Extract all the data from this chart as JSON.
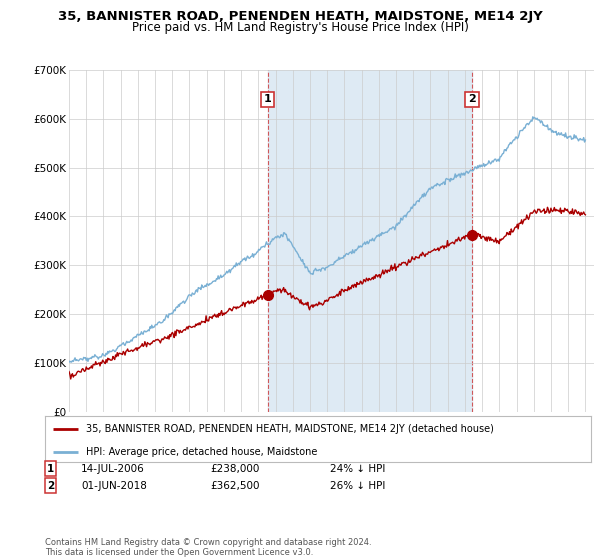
{
  "title": "35, BANNISTER ROAD, PENENDEN HEATH, MAIDSTONE, ME14 2JY",
  "subtitle": "Price paid vs. HM Land Registry's House Price Index (HPI)",
  "ylim": [
    0,
    700000
  ],
  "yticks": [
    0,
    100000,
    200000,
    300000,
    400000,
    500000,
    600000,
    700000
  ],
  "ytick_labels": [
    "£0",
    "£100K",
    "£200K",
    "£300K",
    "£400K",
    "£500K",
    "£600K",
    "£700K"
  ],
  "xlim_start": 1995.0,
  "xlim_end": 2025.5,
  "sale1_x": 2006.54,
  "sale1_y": 238000,
  "sale2_x": 2018.42,
  "sale2_y": 362500,
  "sale1_label": "1",
  "sale2_label": "2",
  "sale1_date": "14-JUL-2006",
  "sale1_price": "£238,000",
  "sale1_hpi": "24% ↓ HPI",
  "sale2_date": "01-JUN-2018",
  "sale2_price": "£362,500",
  "sale2_hpi": "26% ↓ HPI",
  "legend1_label": "35, BANNISTER ROAD, PENENDEN HEATH, MAIDSTONE, ME14 2JY (detached house)",
  "legend2_label": "HPI: Average price, detached house, Maidstone",
  "footer": "Contains HM Land Registry data © Crown copyright and database right 2024.\nThis data is licensed under the Open Government Licence v3.0.",
  "line_red_color": "#aa0000",
  "line_blue_color": "#7ab0d4",
  "shade_color": "#deeaf4",
  "background_color": "#ffffff",
  "grid_color": "#cccccc",
  "title_fontsize": 9.5,
  "subtitle_fontsize": 8.5
}
